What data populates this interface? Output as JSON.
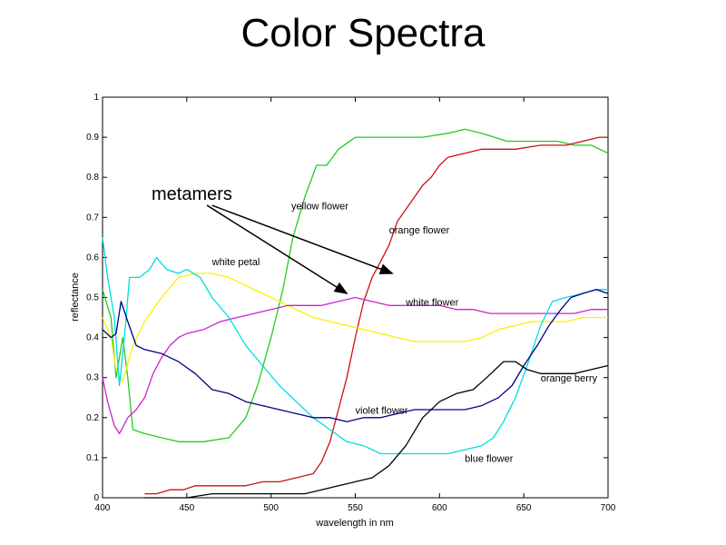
{
  "slide": {
    "title": "Color Spectra"
  },
  "chart_data": {
    "type": "line",
    "xlabel": "wavelength in nm",
    "ylabel": "reflectance",
    "xlim": [
      400,
      700
    ],
    "ylim": [
      0,
      1
    ],
    "xticks": [
      400,
      450,
      500,
      550,
      600,
      650,
      700
    ],
    "yticks": [
      0,
      0.1,
      0.2,
      0.3,
      0.4,
      0.5,
      0.6,
      0.7,
      0.8,
      0.9,
      1
    ],
    "metamers_label": "metamers",
    "series": [
      {
        "name": "yellow flower",
        "color": "#22cc22",
        "points": [
          [
            400,
            0.52
          ],
          [
            405,
            0.45
          ],
          [
            408,
            0.3
          ],
          [
            412,
            0.4
          ],
          [
            415,
            0.3
          ],
          [
            418,
            0.17
          ],
          [
            425,
            0.16
          ],
          [
            435,
            0.15
          ],
          [
            445,
            0.14
          ],
          [
            460,
            0.14
          ],
          [
            475,
            0.15
          ],
          [
            485,
            0.2
          ],
          [
            492,
            0.28
          ],
          [
            500,
            0.4
          ],
          [
            507,
            0.52
          ],
          [
            513,
            0.65
          ],
          [
            520,
            0.75
          ],
          [
            527,
            0.83
          ],
          [
            533,
            0.83
          ],
          [
            540,
            0.87
          ],
          [
            550,
            0.9
          ],
          [
            560,
            0.9
          ],
          [
            575,
            0.9
          ],
          [
            590,
            0.9
          ],
          [
            605,
            0.91
          ],
          [
            615,
            0.92
          ],
          [
            625,
            0.91
          ],
          [
            640,
            0.89
          ],
          [
            655,
            0.89
          ],
          [
            670,
            0.89
          ],
          [
            680,
            0.88
          ],
          [
            690,
            0.88
          ],
          [
            700,
            0.86
          ]
        ]
      },
      {
        "name": "orange flower",
        "color": "#cc1111",
        "points": [
          [
            425,
            0.01
          ],
          [
            432,
            0.01
          ],
          [
            440,
            0.02
          ],
          [
            448,
            0.02
          ],
          [
            455,
            0.03
          ],
          [
            465,
            0.03
          ],
          [
            475,
            0.03
          ],
          [
            485,
            0.03
          ],
          [
            495,
            0.04
          ],
          [
            505,
            0.04
          ],
          [
            515,
            0.05
          ],
          [
            525,
            0.06
          ],
          [
            530,
            0.09
          ],
          [
            535,
            0.14
          ],
          [
            540,
            0.22
          ],
          [
            545,
            0.3
          ],
          [
            550,
            0.4
          ],
          [
            555,
            0.49
          ],
          [
            560,
            0.55
          ],
          [
            565,
            0.59
          ],
          [
            570,
            0.63
          ],
          [
            575,
            0.69
          ],
          [
            580,
            0.72
          ],
          [
            585,
            0.75
          ],
          [
            590,
            0.78
          ],
          [
            595,
            0.8
          ],
          [
            600,
            0.83
          ],
          [
            605,
            0.85
          ],
          [
            615,
            0.86
          ],
          [
            625,
            0.87
          ],
          [
            635,
            0.87
          ],
          [
            645,
            0.87
          ],
          [
            660,
            0.88
          ],
          [
            675,
            0.88
          ],
          [
            685,
            0.89
          ],
          [
            695,
            0.9
          ],
          [
            700,
            0.9
          ]
        ]
      },
      {
        "name": "white petal",
        "color": "#ffee00",
        "points": [
          [
            400,
            0.45
          ],
          [
            405,
            0.4
          ],
          [
            408,
            0.32
          ],
          [
            412,
            0.29
          ],
          [
            418,
            0.38
          ],
          [
            425,
            0.44
          ],
          [
            435,
            0.5
          ],
          [
            445,
            0.55
          ],
          [
            455,
            0.56
          ],
          [
            465,
            0.56
          ],
          [
            475,
            0.55
          ],
          [
            485,
            0.53
          ],
          [
            495,
            0.51
          ],
          [
            505,
            0.49
          ],
          [
            515,
            0.47
          ],
          [
            525,
            0.45
          ],
          [
            535,
            0.44
          ],
          [
            545,
            0.43
          ],
          [
            555,
            0.42
          ],
          [
            565,
            0.41
          ],
          [
            575,
            0.4
          ],
          [
            585,
            0.39
          ],
          [
            595,
            0.39
          ],
          [
            605,
            0.39
          ],
          [
            615,
            0.39
          ],
          [
            625,
            0.4
          ],
          [
            635,
            0.42
          ],
          [
            645,
            0.43
          ],
          [
            655,
            0.44
          ],
          [
            665,
            0.44
          ],
          [
            675,
            0.44
          ],
          [
            685,
            0.45
          ],
          [
            700,
            0.45
          ]
        ]
      },
      {
        "name": "white flower",
        "color": "#cc22cc",
        "points": [
          [
            400,
            0.3
          ],
          [
            403,
            0.24
          ],
          [
            407,
            0.18
          ],
          [
            410,
            0.16
          ],
          [
            415,
            0.2
          ],
          [
            420,
            0.22
          ],
          [
            425,
            0.25
          ],
          [
            430,
            0.31
          ],
          [
            435,
            0.35
          ],
          [
            440,
            0.38
          ],
          [
            445,
            0.4
          ],
          [
            450,
            0.41
          ],
          [
            460,
            0.42
          ],
          [
            470,
            0.44
          ],
          [
            480,
            0.45
          ],
          [
            490,
            0.46
          ],
          [
            500,
            0.47
          ],
          [
            510,
            0.48
          ],
          [
            520,
            0.48
          ],
          [
            530,
            0.48
          ],
          [
            540,
            0.49
          ],
          [
            550,
            0.5
          ],
          [
            560,
            0.49
          ],
          [
            570,
            0.48
          ],
          [
            580,
            0.48
          ],
          [
            590,
            0.48
          ],
          [
            600,
            0.48
          ],
          [
            610,
            0.47
          ],
          [
            620,
            0.47
          ],
          [
            630,
            0.46
          ],
          [
            640,
            0.46
          ],
          [
            650,
            0.46
          ],
          [
            660,
            0.46
          ],
          [
            670,
            0.46
          ],
          [
            680,
            0.46
          ],
          [
            690,
            0.47
          ],
          [
            700,
            0.47
          ]
        ]
      },
      {
        "name": "blue flower",
        "color": "#00dddd",
        "points": [
          [
            400,
            0.65
          ],
          [
            403,
            0.55
          ],
          [
            407,
            0.45
          ],
          [
            410,
            0.28
          ],
          [
            413,
            0.4
          ],
          [
            416,
            0.55
          ],
          [
            422,
            0.55
          ],
          [
            428,
            0.57
          ],
          [
            432,
            0.6
          ],
          [
            438,
            0.57
          ],
          [
            445,
            0.56
          ],
          [
            450,
            0.57
          ],
          [
            458,
            0.55
          ],
          [
            465,
            0.5
          ],
          [
            475,
            0.45
          ],
          [
            485,
            0.38
          ],
          [
            495,
            0.33
          ],
          [
            505,
            0.28
          ],
          [
            515,
            0.24
          ],
          [
            525,
            0.2
          ],
          [
            535,
            0.17
          ],
          [
            545,
            0.14
          ],
          [
            555,
            0.13
          ],
          [
            565,
            0.11
          ],
          [
            575,
            0.11
          ],
          [
            585,
            0.11
          ],
          [
            595,
            0.11
          ],
          [
            605,
            0.11
          ],
          [
            615,
            0.12
          ],
          [
            625,
            0.13
          ],
          [
            632,
            0.15
          ],
          [
            638,
            0.19
          ],
          [
            645,
            0.25
          ],
          [
            652,
            0.33
          ],
          [
            660,
            0.43
          ],
          [
            667,
            0.49
          ],
          [
            675,
            0.5
          ],
          [
            685,
            0.51
          ],
          [
            693,
            0.52
          ],
          [
            700,
            0.52
          ]
        ]
      },
      {
        "name": "violet flower",
        "color": "#000088",
        "points": [
          [
            400,
            0.42
          ],
          [
            405,
            0.4
          ],
          [
            408,
            0.41
          ],
          [
            411,
            0.49
          ],
          [
            415,
            0.44
          ],
          [
            420,
            0.38
          ],
          [
            425,
            0.37
          ],
          [
            435,
            0.36
          ],
          [
            445,
            0.34
          ],
          [
            455,
            0.31
          ],
          [
            465,
            0.27
          ],
          [
            475,
            0.26
          ],
          [
            485,
            0.24
          ],
          [
            495,
            0.23
          ],
          [
            505,
            0.22
          ],
          [
            515,
            0.21
          ],
          [
            525,
            0.2
          ],
          [
            535,
            0.2
          ],
          [
            545,
            0.19
          ],
          [
            555,
            0.2
          ],
          [
            565,
            0.2
          ],
          [
            575,
            0.21
          ],
          [
            585,
            0.22
          ],
          [
            595,
            0.22
          ],
          [
            605,
            0.22
          ],
          [
            615,
            0.22
          ],
          [
            625,
            0.23
          ],
          [
            635,
            0.25
          ],
          [
            643,
            0.28
          ],
          [
            650,
            0.33
          ],
          [
            658,
            0.38
          ],
          [
            665,
            0.43
          ],
          [
            672,
            0.47
          ],
          [
            678,
            0.5
          ],
          [
            685,
            0.51
          ],
          [
            693,
            0.52
          ],
          [
            700,
            0.51
          ]
        ]
      },
      {
        "name": "orange berry",
        "color": "#000000",
        "points": [
          [
            425,
            0.0
          ],
          [
            435,
            0.0
          ],
          [
            450,
            0.0
          ],
          [
            465,
            0.01
          ],
          [
            480,
            0.01
          ],
          [
            495,
            0.01
          ],
          [
            510,
            0.01
          ],
          [
            520,
            0.01
          ],
          [
            530,
            0.02
          ],
          [
            540,
            0.03
          ],
          [
            550,
            0.04
          ],
          [
            560,
            0.05
          ],
          [
            570,
            0.08
          ],
          [
            580,
            0.13
          ],
          [
            590,
            0.2
          ],
          [
            600,
            0.24
          ],
          [
            610,
            0.26
          ],
          [
            620,
            0.27
          ],
          [
            628,
            0.3
          ],
          [
            638,
            0.34
          ],
          [
            645,
            0.34
          ],
          [
            652,
            0.32
          ],
          [
            660,
            0.31
          ],
          [
            670,
            0.31
          ],
          [
            680,
            0.31
          ],
          [
            690,
            0.32
          ],
          [
            700,
            0.33
          ]
        ]
      }
    ],
    "annotations": [
      {
        "text": "yellow flower",
        "x": 512,
        "y": 0.72
      },
      {
        "text": "orange flower",
        "x": 570,
        "y": 0.66
      },
      {
        "text": "white petal",
        "x": 465,
        "y": 0.58
      },
      {
        "text": "white flower",
        "x": 580,
        "y": 0.48
      },
      {
        "text": "violet flower",
        "x": 550,
        "y": 0.21
      },
      {
        "text": "orange berry",
        "x": 660,
        "y": 0.29
      },
      {
        "text": "blue flower",
        "x": 615,
        "y": 0.09
      }
    ],
    "arrows": [
      {
        "from": [
          465,
          0.73
        ],
        "to": [
          572,
          0.56
        ]
      },
      {
        "from": [
          462,
          0.73
        ],
        "to": [
          545,
          0.51
        ]
      }
    ]
  }
}
